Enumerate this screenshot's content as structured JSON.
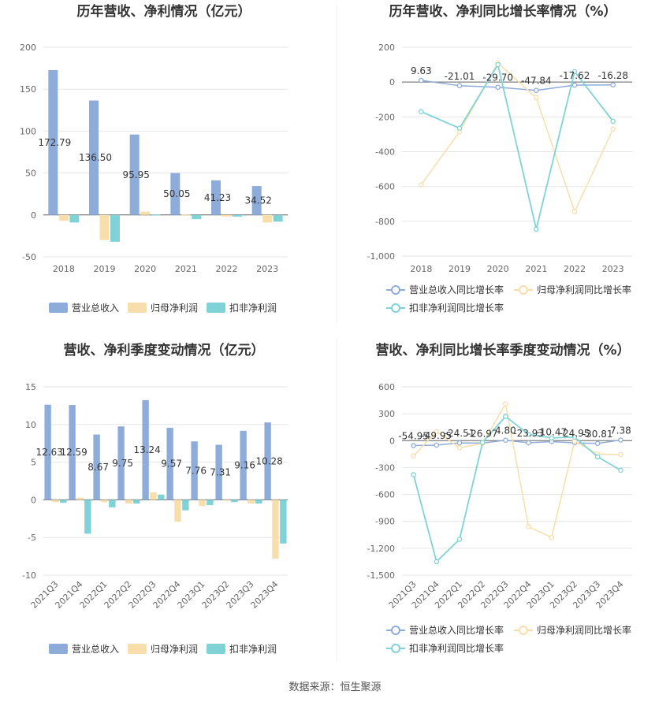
{
  "source_label": "数据来源：恒生聚源",
  "colors": {
    "revenue": "#8eacd9",
    "net_profit": "#f8deaa",
    "deducted_profit": "#7fd3d7",
    "grid": "#e6e6e6",
    "axis": "#666666"
  },
  "chart_data": [
    {
      "type": "bar",
      "title": "历年营收、净利情况（亿元）",
      "categories": [
        "2018",
        "2019",
        "2020",
        "2021",
        "2022",
        "2023"
      ],
      "ylim": [
        -50,
        200
      ],
      "yticks": [
        "200",
        "150",
        "100",
        "50",
        "0",
        "-50"
      ],
      "grid": true,
      "legend_position": "bottom",
      "series": [
        {
          "name": "营业总收入",
          "values": [
            172.79,
            136.5,
            95.95,
            50.05,
            41.23,
            34.52
          ],
          "labels": [
            "172.79",
            "136.50",
            "95.95",
            "50.05",
            "41.23",
            "34.52"
          ]
        },
        {
          "name": "归母净利润",
          "values": [
            -7,
            -30,
            4,
            0.5,
            -2,
            -9
          ]
        },
        {
          "name": "扣非净利润",
          "values": [
            -9,
            -32,
            0.5,
            -5,
            -2,
            -8
          ]
        }
      ]
    },
    {
      "type": "line",
      "title": "历年营收、净利同比增长率情况（%）",
      "categories": [
        "2018",
        "2019",
        "2020",
        "2021",
        "2022",
        "2023"
      ],
      "ylim": [
        -1000,
        200
      ],
      "yticks": [
        "200",
        "0",
        "-200",
        "-400",
        "-600",
        "-800",
        "-1,000"
      ],
      "grid": true,
      "legend_position": "bottom",
      "series": [
        {
          "name": "营业总收入同比增长率",
          "values": [
            9.63,
            -21.01,
            -29.7,
            -47.84,
            -17.62,
            -16.28
          ],
          "labels": [
            "9.63",
            "-21.01",
            "-29.70",
            "-47.84",
            "-17.62",
            "-16.28"
          ]
        },
        {
          "name": "归母净利润同比增长率",
          "values": [
            -590,
            -285,
            110,
            -90,
            -745,
            -270
          ]
        },
        {
          "name": "扣非净利润同比增长率",
          "values": [
            -170,
            -265,
            100,
            -845,
            60,
            -225
          ]
        }
      ]
    },
    {
      "type": "bar",
      "title": "营收、净利季度变动情况（亿元）",
      "categories": [
        "2021Q3",
        "2021Q4",
        "2022Q1",
        "2022Q2",
        "2022Q3",
        "2022Q4",
        "2023Q1",
        "2023Q2",
        "2023Q3",
        "2023Q4"
      ],
      "ylim": [
        -10,
        15
      ],
      "yticks": [
        "15",
        "10",
        "5",
        "0",
        "-5",
        "-10"
      ],
      "grid": true,
      "legend_position": "bottom",
      "series": [
        {
          "name": "营业总收入",
          "values": [
            12.63,
            12.59,
            8.67,
            9.75,
            13.24,
            9.57,
            7.76,
            7.31,
            9.16,
            10.28
          ],
          "labels": [
            "12.63",
            "12.59",
            "8.67",
            "9.75",
            "13.24",
            "9.57",
            "7.76",
            "7.31",
            "9.16",
            "10.28"
          ]
        },
        {
          "name": "归母净利润",
          "values": [
            -0.3,
            0.3,
            -0.3,
            -0.5,
            1.0,
            -2.9,
            -0.8,
            -0.1,
            -0.5,
            -7.8
          ]
        },
        {
          "name": "扣非净利润",
          "values": [
            -0.4,
            -4.5,
            -1.0,
            -0.5,
            0.7,
            -1.4,
            -0.7,
            -0.3,
            -0.5,
            -5.8
          ]
        }
      ]
    },
    {
      "type": "line",
      "title": "营收、净利同比增长率季度变动情况（%）",
      "categories": [
        "2021Q3",
        "2021Q4",
        "2022Q1",
        "2022Q2",
        "2022Q3",
        "2022Q4",
        "2023Q1",
        "2023Q2",
        "2023Q3",
        "2023Q4"
      ],
      "ylim": [
        -1500,
        600
      ],
      "yticks": [
        "600",
        "300",
        "0",
        "-300",
        "-600",
        "-900",
        "-1,200",
        "-1,500"
      ],
      "grid": true,
      "legend_position": "bottom",
      "series": [
        {
          "name": "营业总收入同比增长率",
          "values": [
            -54.95,
            -49.95,
            -24.51,
            -26.97,
            4.8,
            -23.93,
            -10.47,
            -24.95,
            -30.81,
            7.38
          ],
          "labels": [
            "-54.95",
            "-49.95",
            "-24.51",
            "-26.97",
            "4.80",
            "-23.93",
            "-10.47",
            "-24.95",
            "-30.81",
            "7.38"
          ]
        },
        {
          "name": "归母净利润同比增长率",
          "values": [
            -170,
            100,
            -80,
            -30,
            410,
            -960,
            -1080,
            -5,
            -150,
            -155
          ]
        },
        {
          "name": "扣非净利润同比增长率",
          "values": [
            -380,
            -1350,
            -1100,
            -20,
            270,
            70,
            30,
            40,
            -180,
            -330
          ]
        }
      ]
    }
  ]
}
